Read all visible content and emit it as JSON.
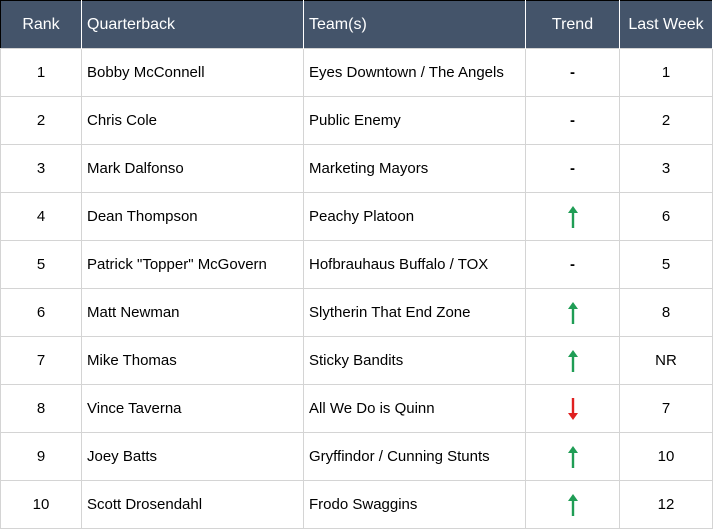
{
  "table": {
    "header": [
      "Rank",
      "Quarterback",
      "Team(s)",
      "Trend",
      "Last Week"
    ],
    "rows": [
      [
        1,
        "Bobby McConnell",
        "Eyes Downtown / The Angels",
        "-",
        1
      ],
      [
        2,
        "Chris Cole",
        "Public Enemy",
        "-",
        2
      ],
      [
        3,
        "Mark Dalfonso",
        "Marketing Mayors",
        "-",
        3
      ],
      [
        4,
        "Dean Thompson",
        "Peachy Platoon",
        "up",
        6
      ],
      [
        5,
        "Patrick \"Topper\" McGovern",
        "Hofbrauhaus Buffalo / TOX",
        "-",
        5
      ],
      [
        6,
        "Matt Newman",
        "Slytherin That End Zone",
        "up",
        8
      ],
      [
        7,
        "Mike Thomas",
        "Sticky Bandits",
        "up",
        "NR"
      ],
      [
        8,
        "Vince Taverna",
        "All We Do is Quinn",
        "down",
        7
      ],
      [
        9,
        "Joey Batts",
        "Gryffindor / Cunning Stunts",
        "up",
        10
      ],
      [
        10,
        "Scott Drosendahl",
        "Frodo Swaggins",
        "up",
        12
      ]
    ],
    "trend_colors": {
      "up": "#1f9d55",
      "down": "#e02020"
    }
  }
}
